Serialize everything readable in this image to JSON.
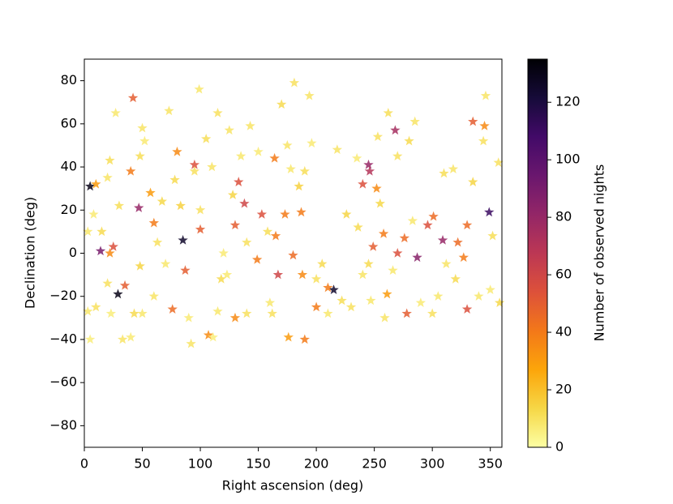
{
  "chart_data": {
    "type": "scatter",
    "xlabel": "Right ascension (deg)",
    "ylabel": "Declination (deg)",
    "colorbar_label": "Number of observed nights",
    "colormap": "inferno_r",
    "marker": "star",
    "xlim": [
      0,
      360
    ],
    "xticks": [
      0,
      50,
      100,
      150,
      200,
      250,
      300,
      350
    ],
    "ylim": [
      -90,
      90
    ],
    "yticks": [
      {
        "value": -80,
        "label": "−80"
      },
      {
        "value": -60,
        "label": "−60"
      },
      {
        "value": -40,
        "label": "−40"
      },
      {
        "value": -20,
        "label": "−20"
      },
      0,
      20,
      40,
      60,
      80
    ],
    "clim": [
      0,
      135
    ],
    "cticks": [
      0,
      20,
      40,
      60,
      80,
      100,
      120
    ],
    "series": [
      {
        "x": [
          5,
          29,
          85,
          215,
          349,
          14,
          47,
          245,
          268,
          287,
          309,
          246,
          42,
          95,
          100,
          87,
          76,
          35,
          25,
          40,
          80,
          57,
          60,
          10,
          22,
          133,
          138,
          130,
          153,
          167,
          164,
          173,
          180,
          165,
          149,
          187,
          190,
          200,
          210,
          240,
          252,
          249,
          258,
          278,
          296,
          301,
          322,
          327,
          330,
          335,
          345,
          330,
          270,
          276,
          107,
          130,
          176,
          261,
          188,
          3,
          5,
          10,
          15,
          8,
          20,
          22,
          27,
          20,
          23,
          33,
          40,
          43,
          50,
          48,
          50,
          48,
          52,
          63,
          67,
          70,
          73,
          78,
          83,
          90,
          92,
          95,
          99,
          105,
          110,
          111,
          115,
          115,
          118,
          123,
          125,
          128,
          135,
          140,
          143,
          150,
          158,
          160,
          162,
          170,
          175,
          178,
          181,
          185,
          190,
          194,
          196,
          200,
          205,
          210,
          218,
          222,
          226,
          230,
          235,
          236,
          240,
          247,
          253,
          255,
          259,
          262,
          266,
          270,
          280,
          285,
          290,
          300,
          305,
          310,
          318,
          320,
          335,
          340,
          344,
          346,
          350,
          352,
          357,
          358,
          312,
          283,
          245,
          140,
          120,
          60,
          3,
          30,
          100
        ],
        "values": [
          31,
          -19,
          6,
          -17,
          19,
          1,
          21,
          41,
          57,
          -2,
          6,
          38,
          72,
          41,
          11,
          -8,
          -26,
          -15,
          3,
          38,
          47,
          28,
          14,
          32,
          0,
          33,
          23,
          13,
          18,
          -10,
          44,
          18,
          -1,
          8,
          -3,
          19,
          -40,
          -25,
          -16,
          32,
          30,
          3,
          9,
          -28,
          13,
          17,
          5,
          -2,
          -26,
          61,
          59,
          13,
          0,
          7,
          -38,
          -30,
          -39,
          -19,
          -10,
          -27,
          -40,
          -25,
          10,
          18,
          35,
          43,
          65,
          -14,
          -28,
          -40,
          -39,
          -28,
          -28,
          -6,
          58,
          45,
          52,
          5,
          24,
          -5,
          66,
          34,
          22,
          -30,
          -42,
          38,
          76,
          53,
          40,
          -39,
          -27,
          65,
          -12,
          -10,
          57,
          27,
          45,
          -28,
          59,
          47,
          10,
          -23,
          -28,
          69,
          50,
          39,
          79,
          31,
          38,
          73,
          51,
          -12,
          -5,
          -28,
          48,
          -22,
          18,
          -25,
          44,
          12,
          -10,
          -22,
          54,
          23,
          -30,
          65,
          -8,
          45,
          52,
          61,
          -23,
          -28,
          -20,
          37,
          39,
          -12,
          33,
          -20,
          52,
          73,
          -17,
          8,
          42,
          -23,
          -5,
          15,
          -5,
          5,
          0,
          -20,
          10,
          22,
          20
        ],
        "c": [
          130,
          130,
          125,
          125,
          110,
          90,
          80,
          80,
          75,
          85,
          80,
          70,
          50,
          55,
          50,
          50,
          45,
          50,
          55,
          40,
          35,
          30,
          40,
          30,
          35,
          55,
          60,
          50,
          55,
          60,
          40,
          40,
          45,
          40,
          40,
          40,
          40,
          40,
          40,
          55,
          35,
          50,
          40,
          50,
          55,
          45,
          45,
          40,
          55,
          50,
          35,
          45,
          55,
          45,
          35,
          35,
          30,
          30,
          35,
          8,
          6,
          10,
          12,
          7,
          9,
          11,
          8,
          10,
          6,
          9,
          7,
          12,
          8,
          14,
          9,
          11,
          7,
          10,
          13,
          8,
          9,
          12,
          15,
          7,
          9,
          10,
          8,
          11,
          9,
          6,
          8,
          10,
          12,
          7,
          9,
          14,
          8,
          10,
          9,
          7,
          11,
          8,
          10,
          12,
          9,
          8,
          10,
          15,
          11,
          9,
          7,
          10,
          12,
          8,
          9,
          11,
          14,
          10,
          7,
          12,
          9,
          8,
          10,
          13,
          9,
          11,
          8,
          10,
          12,
          9,
          7,
          10,
          8,
          11,
          9,
          12,
          14,
          8,
          10,
          9,
          7,
          11,
          10,
          13,
          9,
          8,
          12,
          10,
          7,
          9,
          8,
          11,
          10
        ]
      }
    ]
  }
}
